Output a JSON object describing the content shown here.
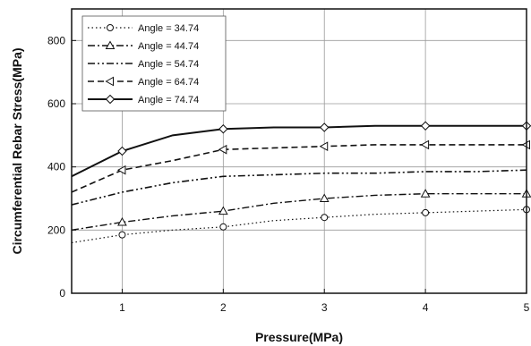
{
  "chart_data": {
    "type": "line",
    "title": "",
    "xlabel": "Pressure(MPa)",
    "ylabel": "Circumferential Rebar Stress(MPa)",
    "xlim": [
      0.5,
      5
    ],
    "ylim": [
      0,
      900
    ],
    "x_ticks": [
      1,
      2,
      3,
      4,
      5
    ],
    "x_tick_labels": [
      "1",
      "2",
      "3",
      "4",
      "5"
    ],
    "y_ticks": [
      0,
      200,
      400,
      600,
      800
    ],
    "y_tick_labels": [
      "0",
      "200",
      "400",
      "600",
      "800"
    ],
    "grid": true,
    "legend_position": "top-left",
    "series": [
      {
        "name": "Angle = 34.74",
        "marker": "circle",
        "dash": "dot",
        "x": [
          0.5,
          1.0,
          1.5,
          2.0,
          2.5,
          3.0,
          3.5,
          4.0,
          4.5,
          5.0
        ],
        "values": [
          160,
          185,
          200,
          210,
          230,
          240,
          250,
          255,
          260,
          265
        ]
      },
      {
        "name": "Angle = 44.74",
        "marker": "triangle",
        "dash": "dash-dot",
        "x": [
          0.5,
          1.0,
          1.5,
          2.0,
          2.5,
          3.0,
          3.5,
          4.0,
          4.5,
          5.0
        ],
        "values": [
          200,
          225,
          245,
          260,
          285,
          300,
          310,
          315,
          315,
          315
        ]
      },
      {
        "name": "Angle = 54.74",
        "marker": "none",
        "dash": "dash-dot-dot",
        "x": [
          0.5,
          1.0,
          1.5,
          2.0,
          2.5,
          3.0,
          3.5,
          4.0,
          4.5,
          5.0
        ],
        "values": [
          280,
          320,
          350,
          370,
          375,
          380,
          380,
          385,
          385,
          390
        ]
      },
      {
        "name": "Angle = 64.74",
        "marker": "triangle-left",
        "dash": "dash",
        "x": [
          0.5,
          1.0,
          1.5,
          2.0,
          2.5,
          3.0,
          3.5,
          4.0,
          4.5,
          5.0
        ],
        "values": [
          320,
          390,
          420,
          455,
          460,
          465,
          470,
          470,
          470,
          470
        ]
      },
      {
        "name": "Angle = 74.74",
        "marker": "diamond",
        "dash": "solid",
        "x": [
          0.5,
          1.0,
          1.5,
          2.0,
          2.5,
          3.0,
          3.5,
          4.0,
          4.5,
          5.0
        ],
        "values": [
          370,
          450,
          500,
          520,
          525,
          525,
          530,
          530,
          530,
          530
        ]
      }
    ]
  }
}
